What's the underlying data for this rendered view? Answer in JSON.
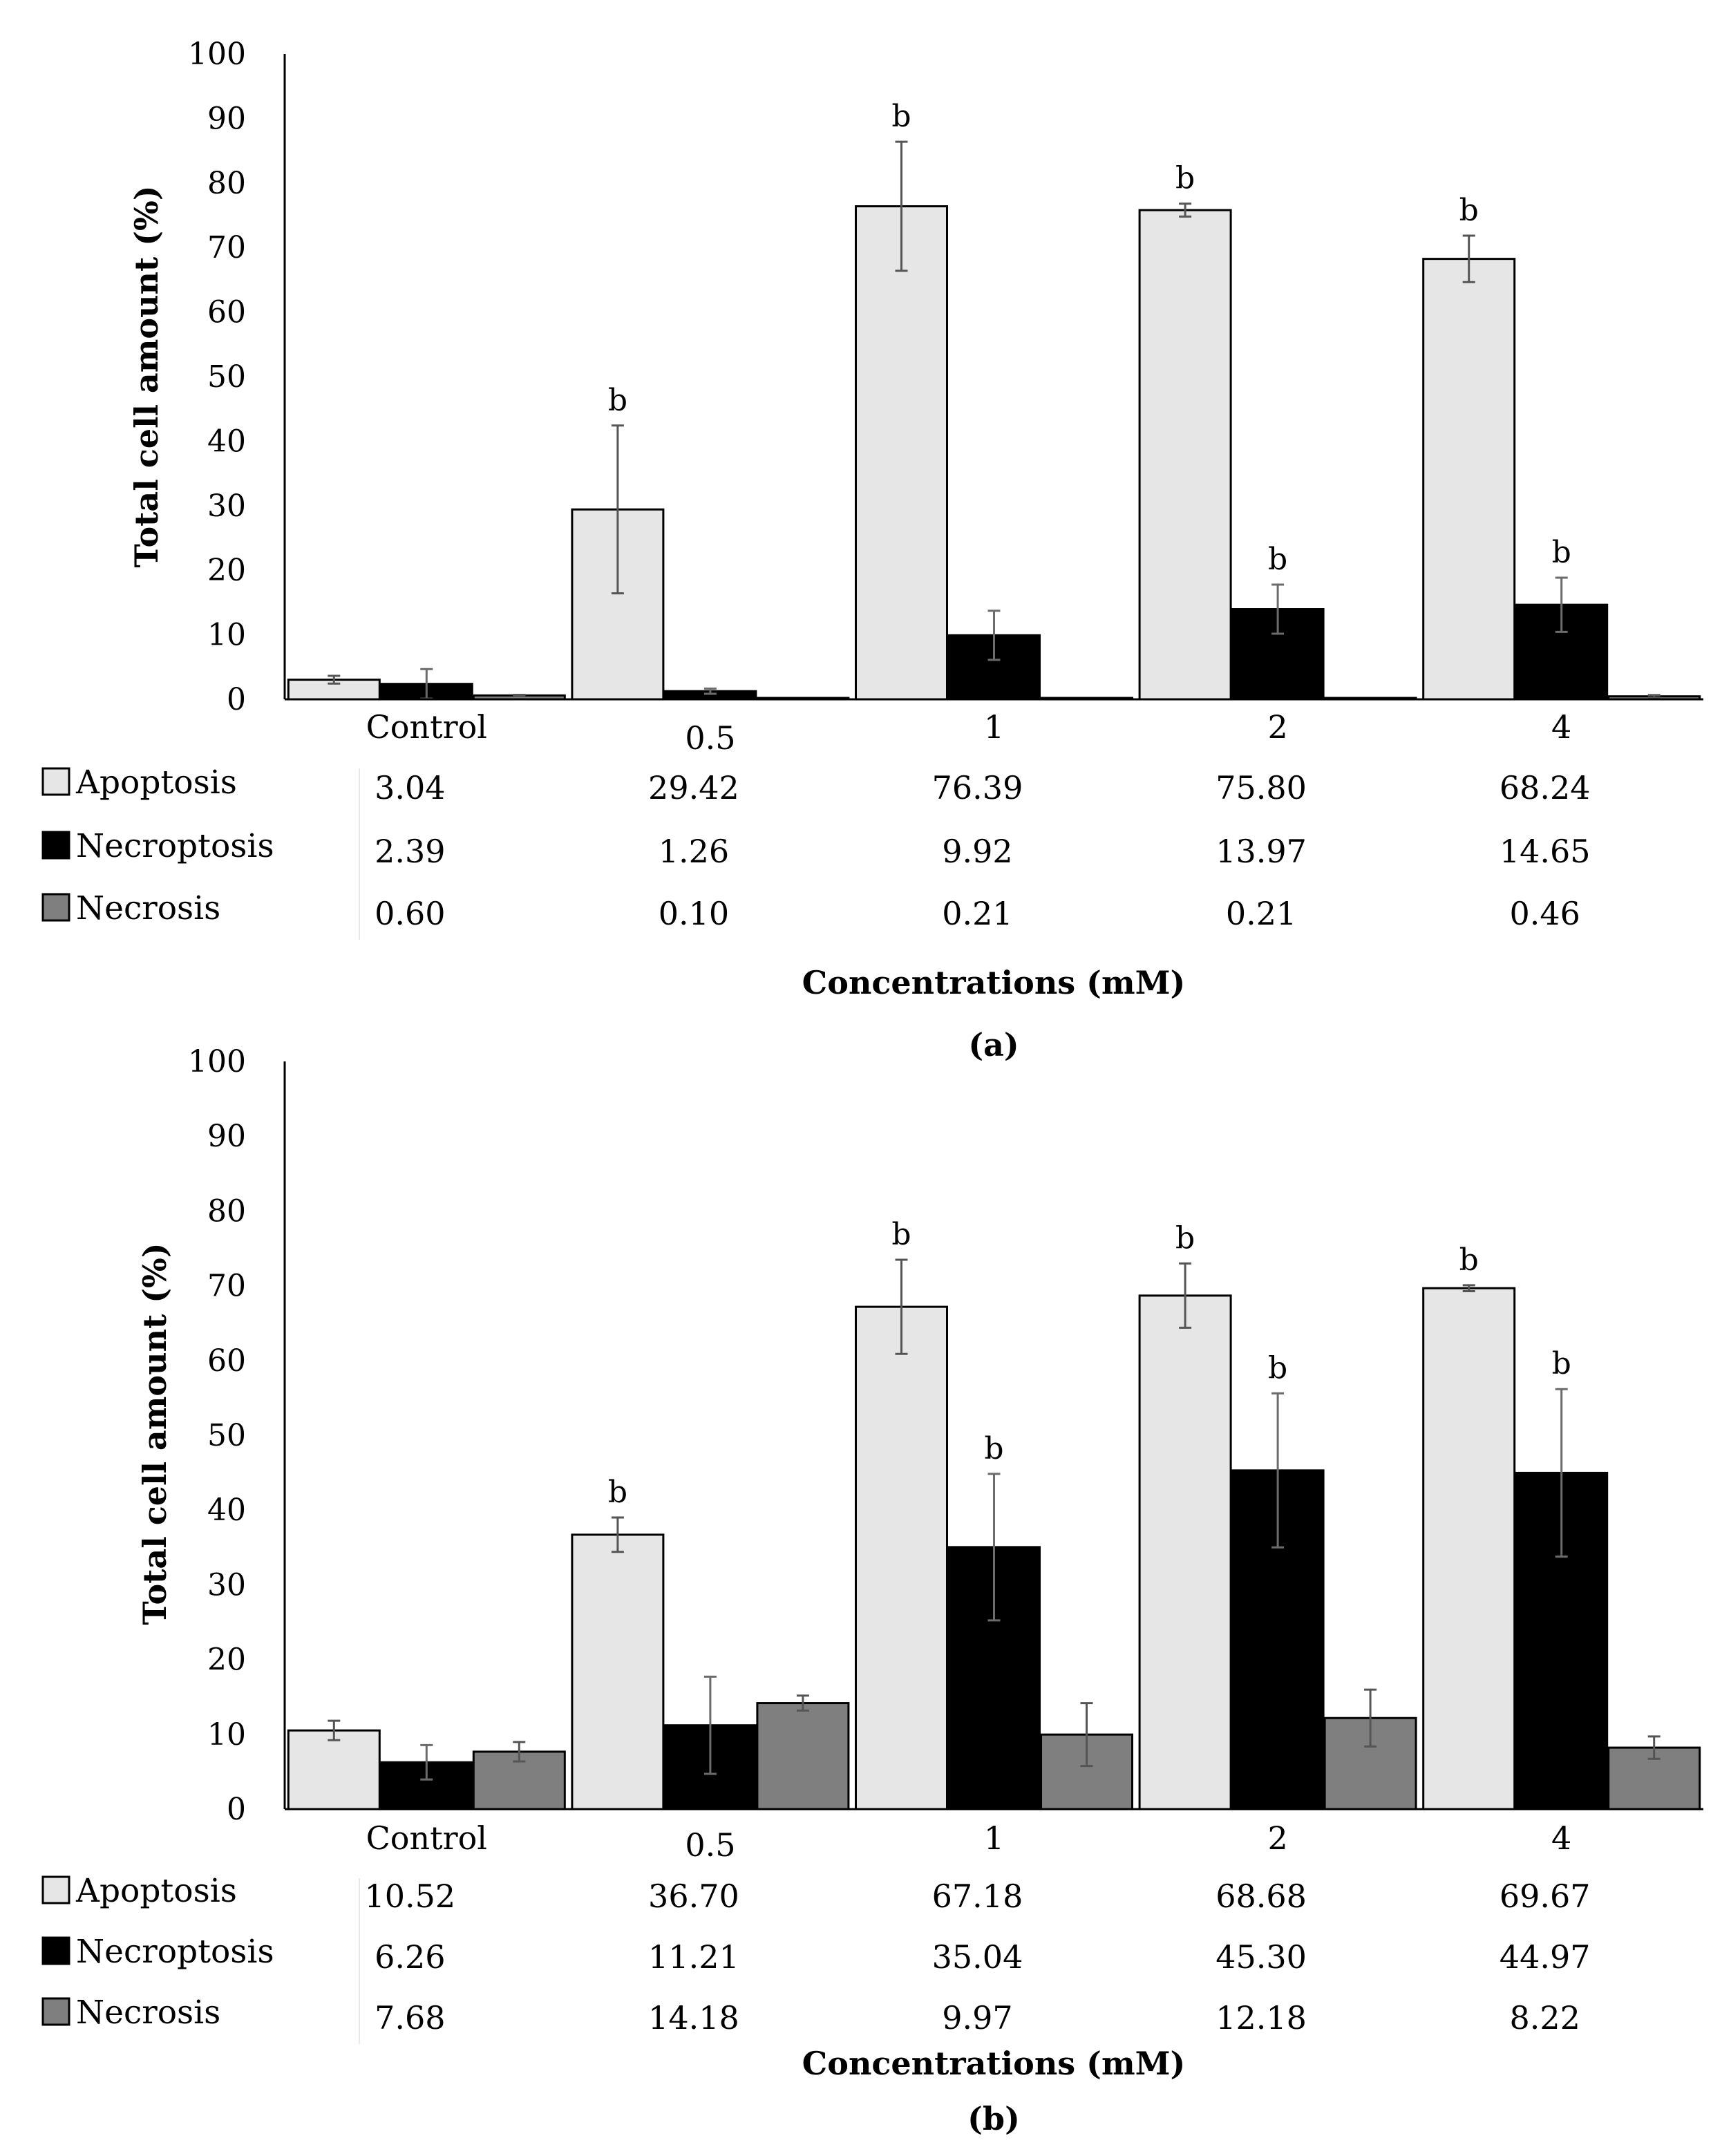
{
  "chart_data": [
    {
      "type": "bar",
      "panel_label": "(a)",
      "categories": [
        "Control",
        "0.5",
        "1",
        "2",
        "4"
      ],
      "ylabel": "Total cell amount (%)",
      "xlabel": "Concentrations (mM)",
      "ylim": [
        0,
        100
      ],
      "yticks": [
        0,
        10,
        20,
        30,
        40,
        50,
        60,
        70,
        80,
        90,
        100
      ],
      "series": [
        {
          "name": "Apoptosis",
          "color": "#e6e6e6",
          "values": [
            3.04,
            29.42,
            76.39,
            75.8,
            68.24
          ],
          "labels": [
            "3.04",
            "29.42",
            "76.39",
            "75.80",
            "68.24"
          ],
          "errors": [
            0.6,
            13.0,
            10.0,
            1.0,
            3.6
          ],
          "sig": [
            "",
            "b",
            "b",
            "b",
            "b"
          ]
        },
        {
          "name": "Necroptosis",
          "color": "#000000",
          "values": [
            2.39,
            1.26,
            9.92,
            13.97,
            14.65
          ],
          "labels": [
            "2.39",
            "1.26",
            "9.92",
            "13.97",
            "14.65"
          ],
          "errors": [
            2.3,
            0.4,
            3.8,
            3.8,
            4.2
          ],
          "sig": [
            "",
            "",
            "",
            "b",
            "b"
          ]
        },
        {
          "name": "Necrosis",
          "color": "#7f7f7f",
          "values": [
            0.6,
            0.1,
            0.21,
            0.21,
            0.46
          ],
          "labels": [
            "0.60",
            "0.10",
            "0.21",
            "0.21",
            "0.46"
          ],
          "errors": [
            0.1,
            0.0,
            0.0,
            0.0,
            0.2
          ],
          "sig": [
            "",
            "",
            "",
            "",
            ""
          ]
        }
      ]
    },
    {
      "type": "bar",
      "panel_label": "(b)",
      "categories": [
        "Control",
        "0.5",
        "1",
        "2",
        "4"
      ],
      "ylabel": "Total cell amount (%)",
      "xlabel": "Concentrations (mM)",
      "ylim": [
        0,
        100
      ],
      "yticks": [
        0,
        10,
        20,
        30,
        40,
        50,
        60,
        70,
        80,
        90,
        100
      ],
      "series": [
        {
          "name": "Apoptosis",
          "color": "#e6e6e6",
          "values": [
            10.52,
            36.7,
            67.18,
            68.68,
            69.67
          ],
          "labels": [
            "10.52",
            "36.70",
            "67.18",
            "68.68",
            "69.67"
          ],
          "errors": [
            1.3,
            2.3,
            6.3,
            4.3,
            0.4
          ],
          "sig": [
            "",
            "b",
            "b",
            "b",
            "b"
          ]
        },
        {
          "name": "Necroptosis",
          "color": "#000000",
          "values": [
            6.26,
            11.21,
            35.04,
            45.3,
            44.97
          ],
          "labels": [
            "6.26",
            "11.21",
            "35.04",
            "45.30",
            "44.97"
          ],
          "errors": [
            2.3,
            6.5,
            9.8,
            10.3,
            11.2
          ],
          "sig": [
            "",
            "",
            "b",
            "b",
            "b"
          ]
        },
        {
          "name": "Necrosis",
          "color": "#7f7f7f",
          "values": [
            7.68,
            14.18,
            9.97,
            12.18,
            8.22
          ],
          "labels": [
            "7.68",
            "14.18",
            "9.97",
            "12.18",
            "8.22"
          ],
          "errors": [
            1.3,
            1.0,
            4.2,
            3.8,
            1.5
          ],
          "sig": [
            "",
            "",
            "",
            "",
            ""
          ]
        }
      ]
    }
  ]
}
